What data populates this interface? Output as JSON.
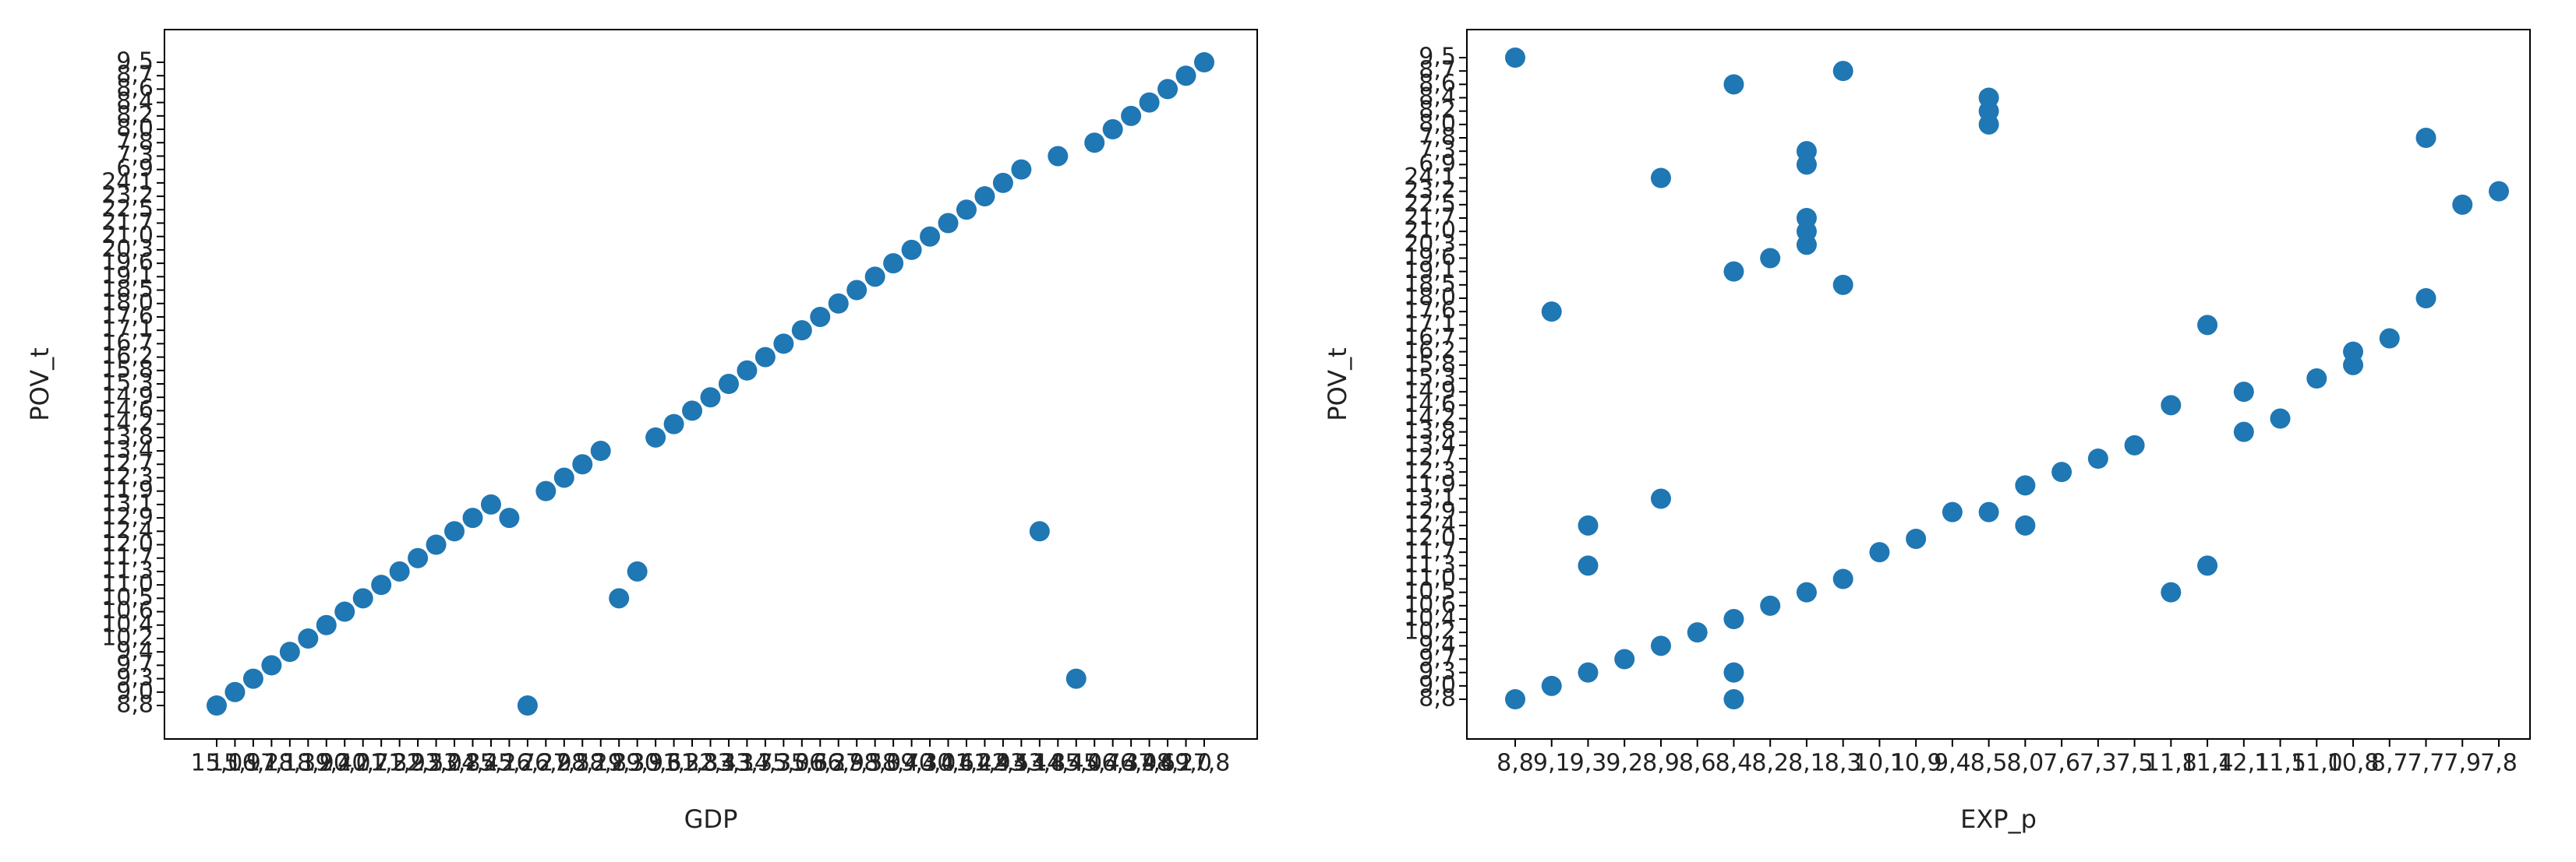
{
  "chart_data": [
    {
      "type": "scatter",
      "x_label": "GDP",
      "y_label": "POV_t",
      "color": "#1f77b4",
      "x_categories": [
        "15,0",
        "15,9",
        "16,2",
        "17,1",
        "18,3",
        "18,9",
        "19,4",
        "20,0",
        "20,7",
        "21,3",
        "21,9",
        "22,5",
        "23,0",
        "23,8",
        "24,4",
        "25,1",
        "25,7",
        "26,2",
        "26,9",
        "27,5",
        "28,1",
        "28,8",
        "29,3",
        "29,9",
        "30,6",
        "31,2",
        "31,8",
        "32,4",
        "33,1",
        "33,7",
        "34,3",
        "35,0",
        "35,6",
        "36,2",
        "36,9",
        "37,5",
        "38,0",
        "38,7",
        "39,3",
        "40,0",
        "40,6",
        "41,2",
        "41,9",
        "42,5",
        "43,1",
        "43,8",
        "44,4",
        "45,0",
        "45,7",
        "46,3",
        "46,9",
        "47,6",
        "48,2",
        "49,0",
        "17,8"
      ],
      "y_categories": [
        "8,8",
        "9,0",
        "9,3",
        "9,7",
        "9,4",
        "10,2",
        "10,4",
        "10,6",
        "10,5",
        "11,0",
        "11,3",
        "11,7",
        "12,0",
        "12,4",
        "12,9",
        "13,1",
        "11,9",
        "12,3",
        "12,7",
        "13,4",
        "13,8",
        "14,2",
        "14,6",
        "14,9",
        "15,3",
        "15,8",
        "16,2",
        "16,7",
        "17,1",
        "17,6",
        "18,0",
        "18,5",
        "19,1",
        "19,6",
        "20,3",
        "21,0",
        "21,7",
        "22,5",
        "23,2",
        "24,1",
        "6,9",
        "7,3",
        "7,8",
        "8,0",
        "8,2",
        "8,4",
        "8,6",
        "8,7",
        "9,5"
      ],
      "x": [
        "15,0",
        "15,9",
        "16,2",
        "17,1",
        "18,3",
        "18,9",
        "19,4",
        "20,0",
        "20,7",
        "21,3",
        "21,9",
        "22,5",
        "23,0",
        "23,8",
        "24,4",
        "25,1",
        "25,7",
        "26,2",
        "26,9",
        "27,5",
        "28,1",
        "28,8",
        "29,3",
        "29,9",
        "30,6",
        "31,2",
        "31,8",
        "32,4",
        "33,1",
        "33,7",
        "34,3",
        "35,0",
        "35,6",
        "36,2",
        "36,9",
        "37,5",
        "38,0",
        "38,7",
        "39,3",
        "40,0",
        "40,6",
        "41,2",
        "41,9",
        "42,5",
        "43,1",
        "43,8",
        "44,4",
        "45,0",
        "45,7",
        "46,3",
        "46,9",
        "47,6",
        "48,2",
        "49,0",
        "17,8"
      ],
      "y": [
        "8,8",
        "9,0",
        "9,3",
        "9,7",
        "9,4",
        "10,2",
        "10,4",
        "10,6",
        "10,5",
        "11,0",
        "11,3",
        "11,7",
        "12,0",
        "12,4",
        "12,9",
        "13,1",
        "12,9",
        "8,8",
        "11,9",
        "12,3",
        "12,7",
        "13,4",
        "10,5",
        "11,3",
        "13,8",
        "14,2",
        "14,6",
        "14,9",
        "15,3",
        "15,8",
        "16,2",
        "16,7",
        "17,1",
        "17,6",
        "18,0",
        "18,5",
        "19,1",
        "19,6",
        "20,3",
        "21,0",
        "21,7",
        "22,5",
        "23,2",
        "24,1",
        "6,9",
        "12,4",
        "7,3",
        "9,3",
        "7,8",
        "8,0",
        "8,2",
        "8,4",
        "8,6",
        "8,7",
        "9,5"
      ]
    },
    {
      "type": "scatter",
      "x_label": "EXP_p",
      "y_label": "POV_t",
      "color": "#1f77b4",
      "x_categories": [
        "8,8",
        "9,1",
        "9,3",
        "9,2",
        "8,9",
        "8,6",
        "8,4",
        "8,2",
        "8,1",
        "8,3",
        "10,1",
        "10,9",
        "9,4",
        "8,5",
        "8,0",
        "7,6",
        "7,3",
        "7,5",
        "11,8",
        "11,4",
        "12,1",
        "11,5",
        "11,0",
        "10,8",
        "8,7",
        "7,7",
        "7,9",
        "7,8"
      ],
      "y_categories": [
        "8,8",
        "9,0",
        "9,3",
        "9,7",
        "9,4",
        "10,2",
        "10,4",
        "10,6",
        "10,5",
        "11,0",
        "11,3",
        "11,7",
        "12,0",
        "12,4",
        "12,9",
        "13,1",
        "11,9",
        "12,3",
        "12,7",
        "13,4",
        "13,8",
        "14,2",
        "14,6",
        "14,9",
        "15,3",
        "15,8",
        "16,2",
        "16,7",
        "17,1",
        "17,6",
        "18,0",
        "18,5",
        "19,1",
        "19,6",
        "20,3",
        "21,0",
        "21,7",
        "22,5",
        "23,2",
        "24,1",
        "6,9",
        "7,3",
        "7,8",
        "8,0",
        "8,2",
        "8,4",
        "8,6",
        "8,7",
        "9,5"
      ],
      "x": [
        "8,8",
        "8,8",
        "9,1",
        "9,1",
        "9,3",
        "9,3",
        "9,3",
        "9,2",
        "8,9",
        "8,9",
        "8,9",
        "8,6",
        "8,4",
        "8,4",
        "8,4",
        "8,4",
        "8,4",
        "8,2",
        "8,2",
        "8,1",
        "8,1",
        "8,1",
        "8,1",
        "8,1",
        "8,1",
        "8,3",
        "8,3",
        "8,3",
        "10,1",
        "10,9",
        "9,4",
        "8,5",
        "8,5",
        "8,5",
        "8,5",
        "8,0",
        "8,0",
        "7,6",
        "7,3",
        "7,5",
        "11,8",
        "11,8",
        "11,4",
        "11,4",
        "12,1",
        "12,1",
        "11,5",
        "11,0",
        "10,8",
        "10,8",
        "8,7",
        "7,7",
        "7,7",
        "7,9",
        "7,8"
      ],
      "y": [
        "8,8",
        "9,5",
        "9,0",
        "17,6",
        "9,3",
        "11,3",
        "12,4",
        "9,7",
        "9,4",
        "13,1",
        "24,1",
        "10,2",
        "9,3",
        "8,8",
        "10,4",
        "19,1",
        "8,6",
        "10,6",
        "19,6",
        "10,5",
        "20,3",
        "21,0",
        "21,7",
        "6,9",
        "7,3",
        "11,0",
        "18,5",
        "8,7",
        "11,7",
        "12,0",
        "12,9",
        "12,9",
        "8,0",
        "8,2",
        "8,4",
        "12,4",
        "11,9",
        "12,3",
        "12,7",
        "13,4",
        "10,5",
        "14,6",
        "11,3",
        "17,1",
        "13,8",
        "14,9",
        "14,2",
        "15,3",
        "15,8",
        "16,2",
        "16,7",
        "18,0",
        "7,8",
        "22,5",
        "23,2"
      ]
    }
  ]
}
